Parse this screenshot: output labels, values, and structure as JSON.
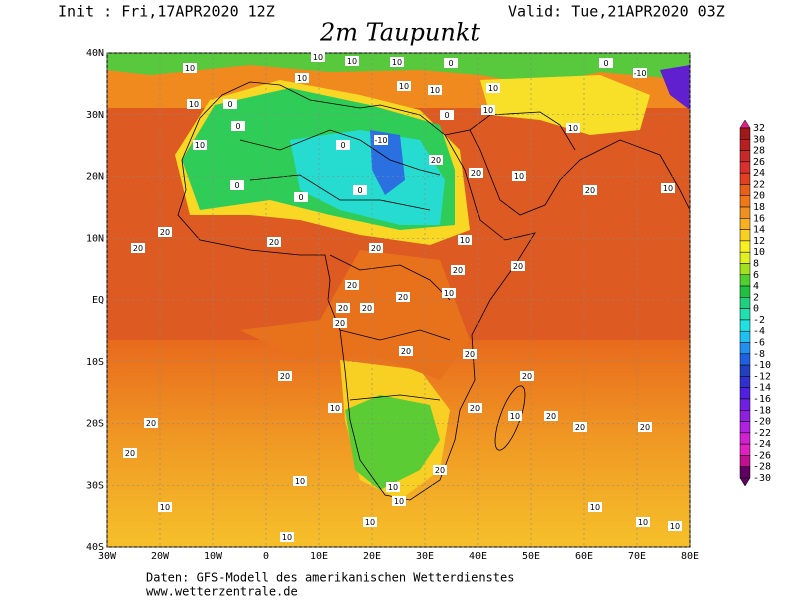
{
  "header": {
    "init": "Init : Fri,17APR2020 12Z",
    "valid": "Valid: Tue,21APR2020 03Z",
    "title": "2m Taupunkt"
  },
  "map": {
    "xlim": [
      -30,
      80
    ],
    "ylim": [
      -40,
      40
    ],
    "xticks": [
      {
        "value": -30,
        "label": "30W"
      },
      {
        "value": -20,
        "label": "20W"
      },
      {
        "value": -10,
        "label": "10W"
      },
      0,
      {
        "value": 10,
        "label": "10E"
      },
      {
        "value": 20,
        "label": "20E"
      },
      {
        "value": 30,
        "label": "30E"
      },
      {
        "value": 40,
        "label": "40E"
      },
      {
        "value": 50,
        "label": "50E"
      },
      {
        "value": 60,
        "label": "60E"
      },
      {
        "value": 70,
        "label": "70E"
      },
      {
        "value": 80,
        "label": "80E"
      }
    ],
    "yticks": [
      {
        "value": 40,
        "label": "40N"
      },
      {
        "value": 30,
        "label": "30N"
      },
      {
        "value": 20,
        "label": "20N"
      },
      {
        "value": 10,
        "label": "10N"
      },
      {
        "value": 0,
        "label": "EQ"
      },
      {
        "value": -10,
        "label": "10S"
      },
      {
        "value": -20,
        "label": "20S"
      },
      {
        "value": -30,
        "label": "30S"
      },
      {
        "value": -40,
        "label": "40S"
      }
    ],
    "contour_labels": [
      10,
      10,
      10,
      10,
      0,
      10,
      10,
      10,
      10,
      10,
      0,
      0,
      0,
      -10,
      10,
      0,
      10,
      0,
      0,
      0,
      20,
      10,
      20,
      20,
      10,
      20,
      20,
      20,
      20,
      10,
      20,
      20,
      20,
      20,
      10,
      20,
      20,
      20,
      20,
      20,
      20,
      20,
      10,
      20,
      20,
      20,
      10,
      20,
      20,
      20,
      20,
      10,
      10,
      10,
      10,
      10,
      10,
      10,
      10,
      10,
      0,
      -10,
      10
    ]
  },
  "colorbar": {
    "levels": [
      32,
      30,
      28,
      26,
      24,
      22,
      20,
      18,
      16,
      14,
      12,
      10,
      8,
      6,
      4,
      2,
      0,
      -2,
      -4,
      -6,
      -8,
      -10,
      -12,
      -14,
      -16,
      -18,
      -20,
      -22,
      -24,
      -26,
      -28,
      -30
    ],
    "colors": [
      "#e0208a",
      "#a01818",
      "#b82020",
      "#c82828",
      "#d83030",
      "#e04020",
      "#e86018",
      "#f07818",
      "#f09020",
      "#f8b020",
      "#f8d020",
      "#f8f020",
      "#e0f020",
      "#a0e020",
      "#50d030",
      "#20c040",
      "#20d080",
      "#20e0b0",
      "#20e0e0",
      "#20c0f0",
      "#2090f0",
      "#2060e0",
      "#2040c0",
      "#3030d0",
      "#5020e0",
      "#7020e0",
      "#9020e0",
      "#b020e0",
      "#d020d0",
      "#e020c0",
      "#c01090",
      "#600060"
    ]
  },
  "footer": {
    "line1": "Daten: GFS-Modell des amerikanischen Wetterdienstes",
    "line2": "www.wetterzentrale.de"
  }
}
